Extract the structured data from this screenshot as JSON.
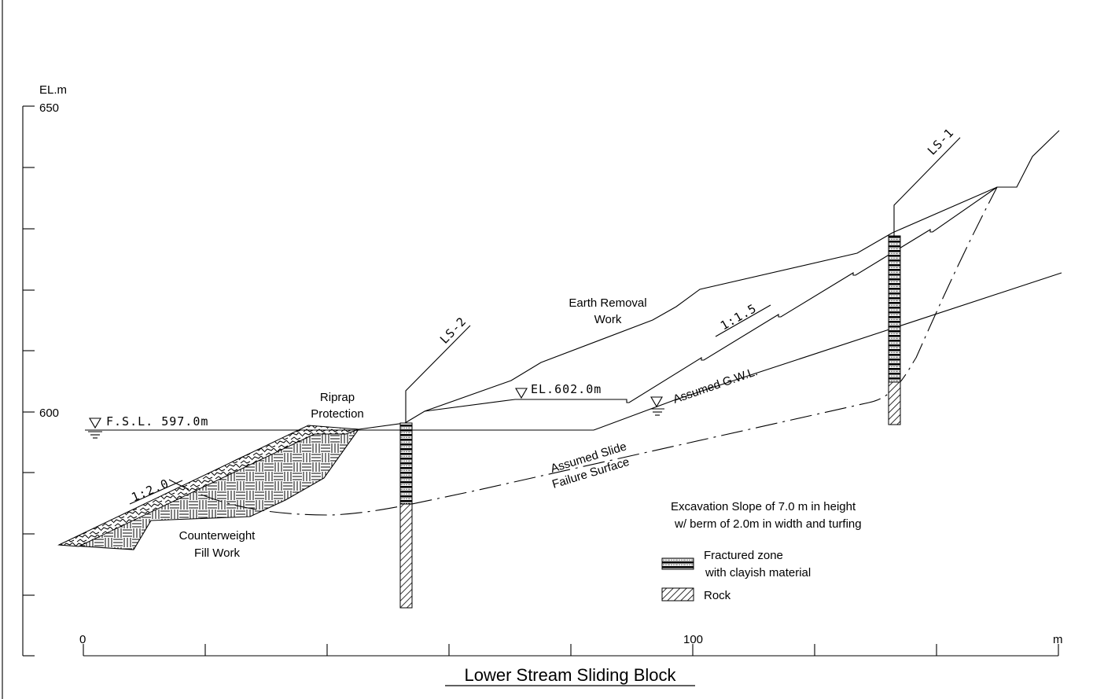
{
  "axis": {
    "y_unit": "EL.m",
    "y_ticks": [
      "650",
      "600"
    ],
    "x_ticks": [
      "0",
      "100"
    ],
    "x_unit": "m"
  },
  "labels": {
    "earth_removal_1": "Earth Removal",
    "earth_removal_2": "Work",
    "riprap_1": "Riprap",
    "riprap_2": "Protection",
    "counterweight_1": "Counterweight",
    "counterweight_2": "Fill Work",
    "slide_1": "Assumed Slide",
    "slide_2": "Failure Surface",
    "gwl": "Assumed G.W.L.",
    "fsl": "F.S.L. 597.0m",
    "el602": "EL.602.0m",
    "slope_fill": "1:2.0",
    "slope_cut": "1:1.5",
    "ls1": "LS-1",
    "ls2": "LS-2",
    "note_1": "Excavation Slope of 7.0 m in height",
    "note_2": "w/ berm of 2.0m in width and turfing"
  },
  "legend": {
    "fractured_1": "Fractured zone",
    "fractured_2": "with clayish material",
    "rock": "Rock"
  },
  "title": "Lower Stream Sliding Block"
}
